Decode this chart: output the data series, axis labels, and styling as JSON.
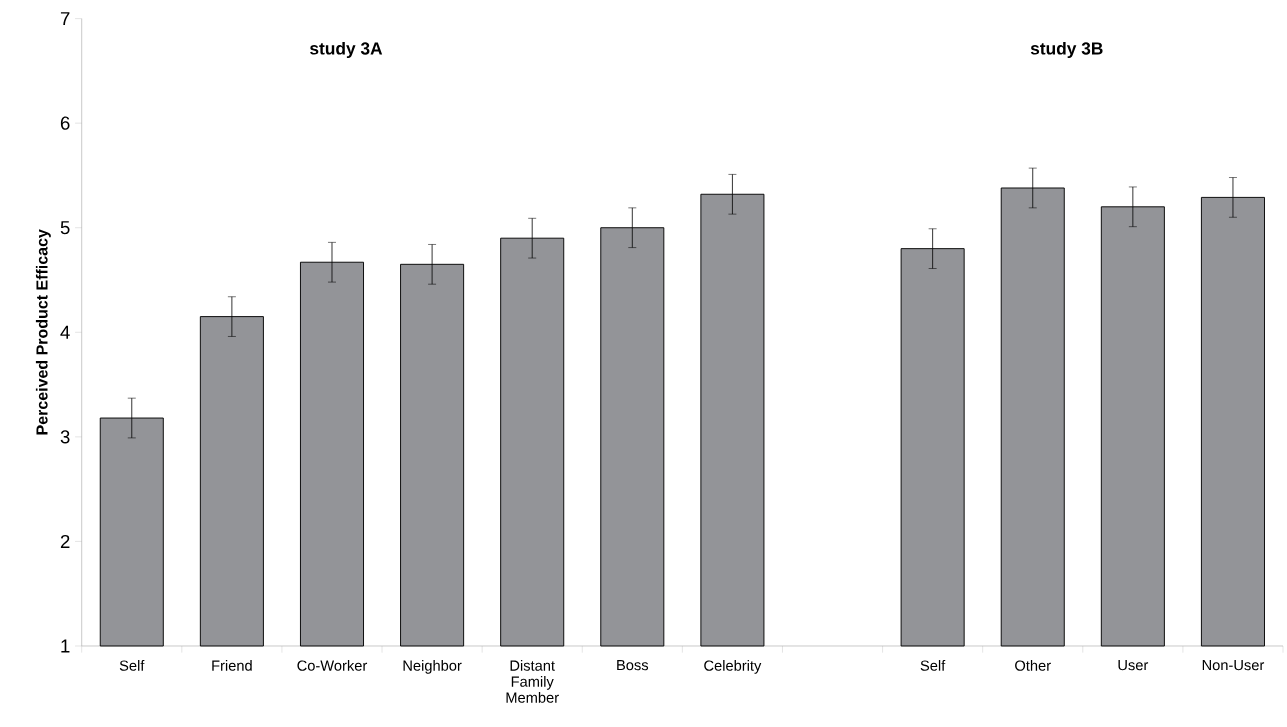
{
  "chart_data": {
    "type": "bar",
    "ylabel": "Perceived Product Efficacy",
    "categories": [
      "Self",
      "Friend",
      "Co-Worker",
      "Neighbor",
      "Distant Family Member",
      "Boss",
      "Celebrity",
      null,
      "Self",
      "Other",
      "User",
      "Non-User"
    ],
    "values": [
      3.18,
      4.15,
      4.67,
      4.65,
      4.9,
      5.0,
      5.32,
      null,
      4.8,
      5.38,
      5.2,
      5.29
    ],
    "errors": [
      0.19,
      0.19,
      0.19,
      0.19,
      0.19,
      0.19,
      0.19,
      null,
      0.19,
      0.19,
      0.19,
      0.19
    ],
    "color": "#939498",
    "ylim": [
      1,
      7
    ],
    "yticks": [
      1,
      2,
      3,
      4,
      5,
      6,
      7
    ],
    "annotations": [
      "study 3A",
      "study 3B"
    ],
    "grid": false
  }
}
